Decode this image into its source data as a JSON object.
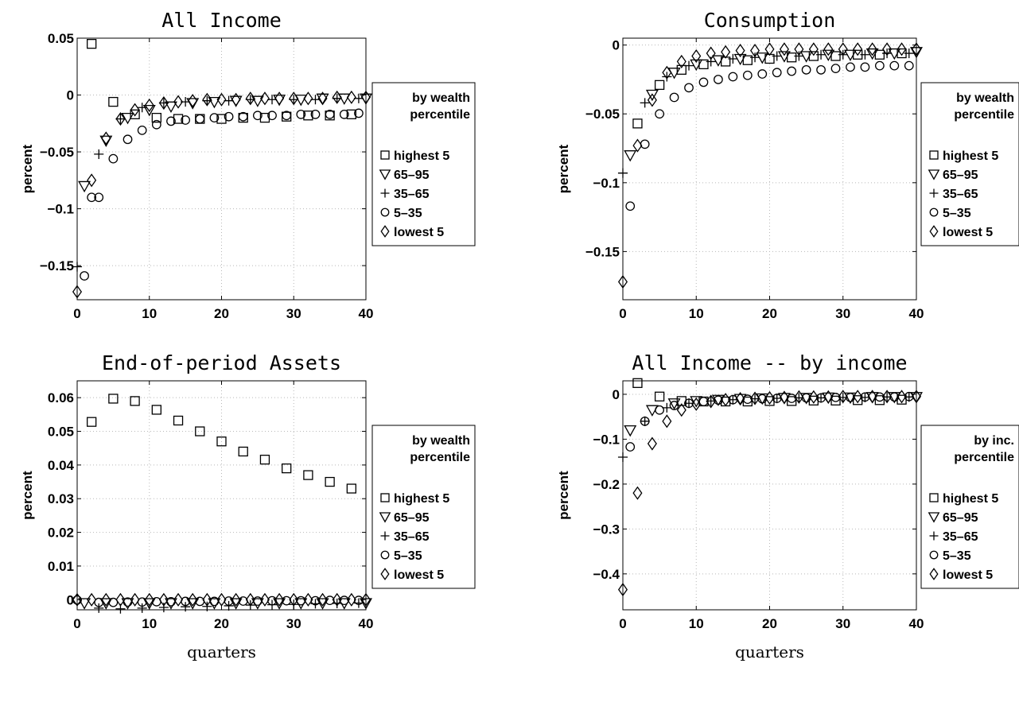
{
  "series_order": [
    "highest 5",
    "65–95",
    "35–65",
    "5–35",
    "lowest 5"
  ],
  "markers": {
    "highest 5": "square",
    "65–95": "triangle-down",
    "35–65": "plus",
    "5–35": "circle",
    "lowest 5": "diamond"
  },
  "x_axis_label": "quarters",
  "chart_data": [
    {
      "type": "scatter",
      "title": "All Income",
      "ylabel": "percent",
      "xlabel": "",
      "xlim": [
        0,
        40
      ],
      "ylim": [
        -0.18,
        0.05
      ],
      "xticks": [
        0,
        10,
        20,
        30,
        40
      ],
      "yticks": [
        0.05,
        0,
        -0.05,
        -0.1,
        -0.15
      ],
      "ytick_labels": [
        "0.05",
        "0",
        "−0.05",
        "−0.1",
        "−0.15"
      ],
      "grid": true,
      "legend": {
        "title_lines": [
          "by wealth",
          "percentile"
        ],
        "placement": "outside-right"
      },
      "series": [
        {
          "name": "highest 5",
          "x": [
            2,
            5,
            8,
            11,
            14,
            17,
            20,
            23,
            26,
            29,
            32,
            35,
            38
          ],
          "y": [
            0.045,
            -0.006,
            -0.017,
            -0.02,
            -0.021,
            -0.021,
            -0.021,
            -0.02,
            -0.02,
            -0.019,
            -0.018,
            -0.018,
            -0.017
          ]
        },
        {
          "name": "65–95",
          "x": [
            1,
            4,
            7,
            10,
            13,
            16,
            19,
            22,
            25,
            28,
            31,
            34,
            37,
            40
          ],
          "y": [
            -0.08,
            -0.04,
            -0.02,
            -0.013,
            -0.01,
            -0.007,
            -0.006,
            -0.005,
            -0.005,
            -0.004,
            -0.004,
            -0.003,
            -0.003,
            -0.003
          ]
        },
        {
          "name": "35–65",
          "x": [
            0,
            3,
            6,
            9,
            12,
            15,
            18,
            21,
            24,
            27,
            30,
            33,
            36,
            39
          ],
          "y": [
            -0.151,
            -0.052,
            -0.021,
            -0.011,
            -0.007,
            -0.006,
            -0.005,
            -0.005,
            -0.004,
            -0.004,
            -0.004,
            -0.004,
            -0.003,
            -0.003
          ]
        },
        {
          "name": "5–35",
          "x": [
            1,
            2,
            3,
            5,
            7,
            9,
            11,
            13,
            15,
            17,
            19,
            21,
            23,
            25,
            27,
            29,
            31,
            33,
            35,
            37,
            39
          ],
          "y": [
            -0.159,
            -0.09,
            -0.09,
            -0.056,
            -0.039,
            -0.031,
            -0.026,
            -0.023,
            -0.022,
            -0.021,
            -0.02,
            -0.019,
            -0.019,
            -0.018,
            -0.018,
            -0.018,
            -0.017,
            -0.017,
            -0.017,
            -0.017,
            -0.016
          ]
        },
        {
          "name": "lowest 5",
          "x": [
            0,
            2,
            4,
            6,
            8,
            10,
            12,
            14,
            16,
            18,
            20,
            22,
            24,
            26,
            28,
            30,
            32,
            34,
            36,
            38,
            40
          ],
          "y": [
            -0.173,
            -0.075,
            -0.038,
            -0.021,
            -0.013,
            -0.009,
            -0.007,
            -0.006,
            -0.005,
            -0.004,
            -0.004,
            -0.004,
            -0.003,
            -0.003,
            -0.003,
            -0.003,
            -0.003,
            -0.003,
            -0.002,
            -0.002,
            -0.002
          ]
        }
      ]
    },
    {
      "type": "scatter",
      "title": "Consumption",
      "ylabel": "percent",
      "xlabel": "",
      "xlim": [
        0,
        40
      ],
      "ylim": [
        -0.185,
        0.005
      ],
      "xticks": [
        0,
        10,
        20,
        30,
        40
      ],
      "yticks": [
        0,
        -0.05,
        -0.1,
        -0.15
      ],
      "ytick_labels": [
        "0",
        "−0.05",
        "−0.1",
        "−0.15"
      ],
      "grid": true,
      "legend": {
        "title_lines": [
          "by wealth",
          "percentile"
        ],
        "placement": "outside-right"
      },
      "series": [
        {
          "name": "highest 5",
          "x": [
            2,
            5,
            8,
            11,
            14,
            17,
            20,
            23,
            26,
            29,
            32,
            35,
            38
          ],
          "y": [
            -0.057,
            -0.029,
            -0.018,
            -0.014,
            -0.012,
            -0.011,
            -0.01,
            -0.009,
            -0.008,
            -0.008,
            -0.007,
            -0.007,
            -0.006
          ]
        },
        {
          "name": "65–95",
          "x": [
            1,
            4,
            7,
            10,
            13,
            16,
            19,
            22,
            25,
            28,
            31,
            34,
            37,
            40
          ],
          "y": [
            -0.08,
            -0.036,
            -0.02,
            -0.014,
            -0.011,
            -0.01,
            -0.009,
            -0.008,
            -0.008,
            -0.007,
            -0.007,
            -0.006,
            -0.006,
            -0.005
          ]
        },
        {
          "name": "35–65",
          "x": [
            0,
            3,
            6,
            9,
            12,
            15,
            18,
            21,
            24,
            27,
            30,
            33,
            36,
            39
          ],
          "y": [
            -0.093,
            -0.042,
            -0.023,
            -0.015,
            -0.012,
            -0.01,
            -0.009,
            -0.008,
            -0.008,
            -0.007,
            -0.007,
            -0.007,
            -0.006,
            -0.006
          ]
        },
        {
          "name": "5–35",
          "x": [
            1,
            3,
            5,
            7,
            9,
            11,
            13,
            15,
            17,
            19,
            21,
            23,
            25,
            27,
            29,
            31,
            33,
            35,
            37,
            39
          ],
          "y": [
            -0.117,
            -0.072,
            -0.05,
            -0.038,
            -0.031,
            -0.027,
            -0.025,
            -0.023,
            -0.022,
            -0.021,
            -0.02,
            -0.019,
            -0.018,
            -0.018,
            -0.017,
            -0.016,
            -0.016,
            -0.015,
            -0.015,
            -0.015
          ]
        },
        {
          "name": "lowest 5",
          "x": [
            0,
            2,
            4,
            6,
            8,
            10,
            12,
            14,
            16,
            18,
            20,
            22,
            24,
            26,
            28,
            30,
            32,
            34,
            36,
            38,
            40
          ],
          "y": [
            -0.172,
            -0.073,
            -0.04,
            -0.02,
            -0.012,
            -0.008,
            -0.006,
            -0.005,
            -0.004,
            -0.004,
            -0.003,
            -0.003,
            -0.003,
            -0.003,
            -0.003,
            -0.003,
            -0.003,
            -0.003,
            -0.003,
            -0.003,
            -0.003
          ]
        }
      ]
    },
    {
      "type": "scatter",
      "title": "End-of-period Assets",
      "ylabel": "percent",
      "xlabel": "",
      "xlim": [
        0,
        40
      ],
      "ylim": [
        -0.003,
        0.065
      ],
      "xticks": [
        0,
        10,
        20,
        30,
        40
      ],
      "yticks": [
        0.06,
        0.05,
        0.04,
        0.03,
        0.02,
        0.01,
        0
      ],
      "ytick_labels": [
        "0.06",
        "0.05",
        "0.04",
        "0.03",
        "0.02",
        "0.01",
        "0"
      ],
      "grid": true,
      "legend": {
        "title_lines": [
          "by wealth",
          "percentile"
        ],
        "placement": "outside-right"
      },
      "series": [
        {
          "name": "highest 5",
          "x": [
            2,
            5,
            8,
            11,
            14,
            17,
            20,
            23,
            26,
            29,
            32,
            35,
            38
          ],
          "y": [
            0.0528,
            0.0597,
            0.059,
            0.0564,
            0.0532,
            0.05,
            0.047,
            0.044,
            0.0416,
            0.039,
            0.037,
            0.035,
            0.033
          ]
        },
        {
          "name": "65–95",
          "x": [
            1,
            4,
            7,
            10,
            13,
            16,
            19,
            22,
            25,
            28,
            31,
            34,
            37,
            40
          ],
          "y": [
            -0.001,
            -0.001,
            -0.001,
            -0.001,
            -0.001,
            -0.001,
            -0.001,
            -0.001,
            -0.001,
            -0.001,
            -0.001,
            -0.001,
            -0.001,
            -0.001
          ]
        },
        {
          "name": "35–65",
          "x": [
            3,
            6,
            9,
            12,
            15,
            18,
            21,
            24,
            27,
            30,
            33,
            36,
            39
          ],
          "y": [
            -0.0025,
            -0.0027,
            -0.0025,
            -0.0023,
            -0.0021,
            -0.002,
            -0.0018,
            -0.0016,
            -0.0015,
            -0.0014,
            -0.0012,
            -0.0011,
            -0.001
          ]
        },
        {
          "name": "5–35",
          "x": [
            0,
            3,
            5,
            7,
            9,
            11,
            13,
            15,
            17,
            19,
            21,
            23,
            25,
            27,
            29,
            31,
            33,
            35,
            37,
            39
          ],
          "y": [
            -0.0001,
            -0.0008,
            -0.0008,
            -0.0007,
            -0.0007,
            -0.0006,
            -0.0006,
            -0.0005,
            -0.0005,
            -0.0005,
            -0.0004,
            -0.0004,
            -0.0004,
            -0.0003,
            -0.0003,
            -0.0003,
            -0.0003,
            -0.0002,
            -0.0002,
            -0.0002
          ]
        },
        {
          "name": "lowest 5",
          "x": [
            0,
            2,
            4,
            6,
            8,
            10,
            12,
            14,
            16,
            18,
            20,
            22,
            24,
            26,
            28,
            30,
            32,
            34,
            36,
            38,
            40
          ],
          "y": [
            0,
            0,
            0,
            0,
            0,
            0,
            0,
            0,
            0,
            0,
            0,
            0,
            0,
            0,
            0,
            0,
            0,
            0,
            0,
            0,
            0
          ]
        }
      ]
    },
    {
      "type": "scatter",
      "title": "All Income -- by income",
      "ylabel": "percent",
      "xlabel": "",
      "xlim": [
        0,
        40
      ],
      "ylim": [
        -0.48,
        0.03
      ],
      "xticks": [
        0,
        10,
        20,
        30,
        40
      ],
      "yticks": [
        0,
        -0.1,
        -0.2,
        -0.3,
        -0.4
      ],
      "ytick_labels": [
        "0",
        "−0.1",
        "−0.2",
        "−0.3",
        "−0.4"
      ],
      "grid": true,
      "legend": {
        "title_lines": [
          "by inc.",
          "percentile"
        ],
        "placement": "outside-right"
      },
      "series": [
        {
          "name": "highest 5",
          "x": [
            2,
            5,
            8,
            11,
            14,
            17,
            20,
            23,
            26,
            29,
            32,
            35,
            38
          ],
          "y": [
            0.025,
            -0.005,
            -0.015,
            -0.016,
            -0.016,
            -0.016,
            -0.015,
            -0.015,
            -0.014,
            -0.014,
            -0.013,
            -0.013,
            -0.012
          ]
        },
        {
          "name": "65–95",
          "x": [
            1,
            4,
            7,
            10,
            13,
            16,
            19,
            22,
            25,
            28,
            31,
            34,
            37,
            40
          ],
          "y": [
            -0.08,
            -0.035,
            -0.02,
            -0.015,
            -0.012,
            -0.01,
            -0.009,
            -0.008,
            -0.008,
            -0.007,
            -0.007,
            -0.006,
            -0.006,
            -0.006
          ]
        },
        {
          "name": "35–65",
          "x": [
            0,
            3,
            6,
            9,
            12,
            15,
            18,
            21,
            24,
            27,
            30,
            33,
            36,
            39
          ],
          "y": [
            -0.14,
            -0.06,
            -0.03,
            -0.02,
            -0.015,
            -0.012,
            -0.01,
            -0.009,
            -0.008,
            -0.008,
            -0.007,
            -0.007,
            -0.006,
            -0.006
          ]
        },
        {
          "name": "5–35",
          "x": [
            1,
            3,
            5,
            7,
            9,
            11,
            13,
            15,
            17,
            19,
            21,
            23,
            25,
            27,
            29,
            31,
            33,
            35,
            37,
            39
          ],
          "y": [
            -0.117,
            -0.06,
            -0.035,
            -0.025,
            -0.02,
            -0.016,
            -0.013,
            -0.012,
            -0.011,
            -0.01,
            -0.009,
            -0.009,
            -0.008,
            -0.008,
            -0.007,
            -0.007,
            -0.006,
            -0.006,
            -0.006,
            -0.005
          ]
        },
        {
          "name": "lowest 5",
          "x": [
            0,
            2,
            4,
            6,
            8,
            10,
            12,
            14,
            16,
            18,
            20,
            22,
            24,
            26,
            28,
            30,
            32,
            34,
            36,
            38,
            40
          ],
          "y": [
            -0.435,
            -0.22,
            -0.11,
            -0.06,
            -0.035,
            -0.022,
            -0.016,
            -0.012,
            -0.01,
            -0.009,
            -0.008,
            -0.007,
            -0.006,
            -0.006,
            -0.006,
            -0.005,
            -0.005,
            -0.005,
            -0.005,
            -0.005,
            -0.005
          ]
        }
      ]
    }
  ]
}
